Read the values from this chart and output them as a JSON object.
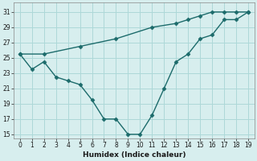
{
  "xlabel": "Humidex (Indice chaleur)",
  "background_color": "#d7eeee",
  "grid_color": "#add8d8",
  "line_color": "#1c6b6b",
  "xlim": [
    -0.5,
    19.5
  ],
  "ylim": [
    14.5,
    32.2
  ],
  "xticks": [
    0,
    1,
    2,
    3,
    4,
    5,
    6,
    7,
    8,
    9,
    10,
    11,
    12,
    13,
    14,
    15,
    16,
    17,
    18,
    19
  ],
  "yticks": [
    15,
    17,
    19,
    21,
    23,
    25,
    27,
    29,
    31
  ],
  "series1_x": [
    0,
    1,
    2,
    3,
    4,
    5,
    6,
    7,
    8,
    9,
    10,
    11,
    12,
    13,
    14,
    15,
    16,
    17,
    18,
    19
  ],
  "series1_y": [
    25.5,
    23.5,
    24.5,
    22.5,
    22.0,
    21.5,
    19.5,
    17.0,
    17.0,
    15.0,
    15.0,
    17.5,
    21.0,
    24.5,
    25.5,
    27.5,
    28.0,
    30.0,
    30.0,
    31.0
  ],
  "series2_x": [
    0,
    2,
    5,
    8,
    11,
    13,
    14,
    15,
    16,
    17,
    18,
    19
  ],
  "series2_y": [
    25.5,
    25.5,
    26.5,
    27.5,
    29.0,
    29.5,
    30.0,
    30.5,
    31.0,
    31.0,
    31.0,
    31.0
  ],
  "marker": "D",
  "markersize": 2.5,
  "linewidth": 1.0
}
